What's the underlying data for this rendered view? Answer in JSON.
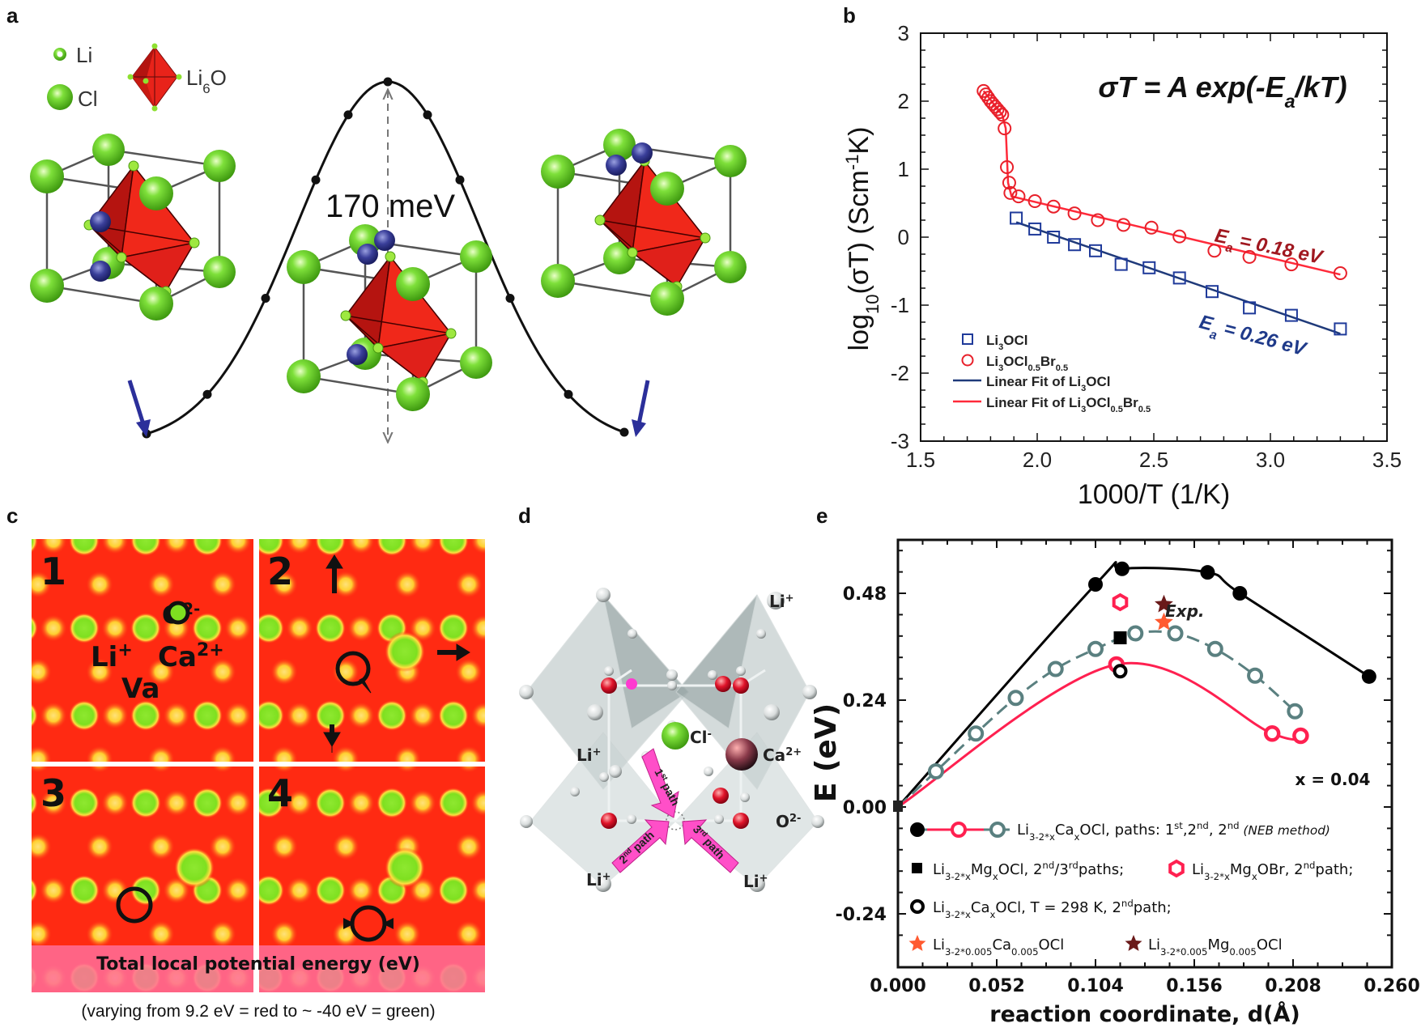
{
  "panels": {
    "a": {
      "label": "a",
      "legend": {
        "li": "Li",
        "cl": "Cl",
        "octahedron": [
          [
            "Li",
            ""
          ],
          [
            "6",
            "sub"
          ],
          [
            "O",
            ""
          ]
        ]
      },
      "barrier_label": "170 meV",
      "colors": {
        "cl": "#6fd92a",
        "octahedron": "#e8231a",
        "migrating_li": "#3a3f9a",
        "arrow": "#2b2f9a"
      }
    },
    "b": {
      "label": "b"
    },
    "c": {
      "label": "c",
      "quadrant_labels": [
        "1",
        "2",
        "3",
        "4"
      ],
      "ion_labels": {
        "o": [
          [
            "O",
            ""
          ],
          [
            "2-",
            "sup"
          ]
        ],
        "li": [
          [
            "Li",
            ""
          ],
          [
            "+",
            "sup"
          ]
        ],
        "ca": [
          [
            "Ca",
            ""
          ],
          [
            "2+",
            "sup"
          ]
        ],
        "va": [
          [
            "Va",
            ""
          ]
        ]
      },
      "band_label": "Total local potential energy (eV)",
      "caption": "(varying from 9.2 eV = red to ~ -40 eV = green)",
      "colors": {
        "high": "#ff2a12",
        "low": "#7ee020",
        "mid": "#ffe040",
        "band": "#ff6f9a"
      }
    },
    "d": {
      "label": "d",
      "labels": {
        "li_top": [
          [
            "Li",
            ""
          ],
          [
            "+",
            "sup"
          ]
        ],
        "li_left": [
          [
            "Li",
            ""
          ],
          [
            "+",
            "sup"
          ]
        ],
        "cl": [
          [
            "Cl",
            ""
          ],
          [
            "-",
            "sup"
          ]
        ],
        "ca": [
          [
            "Ca",
            ""
          ],
          [
            "2+",
            "sup"
          ]
        ],
        "o": [
          [
            "O",
            ""
          ],
          [
            "2-",
            "sup"
          ]
        ],
        "li_bottom_left": [
          [
            "Li",
            ""
          ],
          [
            "+",
            "sup"
          ]
        ],
        "li_bottom_right": [
          [
            "Li",
            ""
          ],
          [
            "+",
            "sup"
          ]
        ]
      },
      "paths": [
        [
          [
            "1",
            ""
          ],
          [
            "st",
            "sup"
          ],
          [
            " path",
            ""
          ]
        ],
        [
          [
            "2",
            ""
          ],
          [
            "nd",
            "sup"
          ],
          [
            " path",
            ""
          ]
        ],
        [
          [
            "3",
            ""
          ],
          [
            "rd",
            "sup"
          ],
          [
            " path",
            ""
          ]
        ]
      ],
      "colors": {
        "path_arrow": "#ff4fc8",
        "o": "#e0142a",
        "cl": "#8ee030",
        "ca": "#7a2b3a"
      }
    },
    "e": {
      "label": "e"
    }
  },
  "chart_data": [
    {
      "id": "b",
      "type": "scatter",
      "equation": [
        [
          "σT = A exp(-E",
          ""
        ],
        [
          "a",
          "sub"
        ],
        [
          "/kT)",
          ""
        ]
      ],
      "xlabel": "1000/T (1/K)",
      "ylabel": [
        [
          "log",
          ""
        ],
        [
          "10",
          "sub"
        ],
        [
          "(σT) (Scm",
          ""
        ],
        [
          "-1",
          "sup"
        ],
        [
          "K)",
          ""
        ]
      ],
      "xlim": [
        1.5,
        3.5
      ],
      "ylim": [
        -3,
        3
      ],
      "xticks": [
        "1.5",
        "2.0",
        "2.5",
        "3.0",
        "3.5"
      ],
      "yticks": [
        "-3",
        "-2",
        "-1",
        "0",
        "1",
        "2",
        "3"
      ],
      "legend_position": "bottom-left",
      "series": [
        {
          "name": "Li3OCl",
          "name_rich": [
            [
              "Li",
              ""
            ],
            [
              "3",
              "sub"
            ],
            [
              "OCl",
              ""
            ]
          ],
          "marker": "open-square",
          "color": "#1f3a9a",
          "x": [
            1.91,
            1.99,
            2.07,
            2.16,
            2.25,
            2.36,
            2.48,
            2.61,
            2.75,
            2.91,
            3.09,
            3.3
          ],
          "y": [
            0.28,
            0.12,
            0.0,
            -0.11,
            -0.2,
            -0.4,
            -0.45,
            -0.6,
            -0.8,
            -1.04,
            -1.15,
            -1.35
          ]
        },
        {
          "name": "Li3OCl0.5Br0.5",
          "name_rich": [
            [
              "Li",
              ""
            ],
            [
              "3",
              "sub"
            ],
            [
              "OCl",
              ""
            ],
            [
              "0.5",
              "sub"
            ],
            [
              "Br",
              ""
            ],
            [
              "0.5",
              "sub"
            ]
          ],
          "marker": "open-circle",
          "color": "#e8202a",
          "x": [
            1.77,
            1.78,
            1.79,
            1.8,
            1.81,
            1.82,
            1.83,
            1.84,
            1.85,
            1.86,
            1.87,
            1.88,
            1.885,
            1.92,
            1.99,
            2.07,
            2.16,
            2.26,
            2.37,
            2.49,
            2.61,
            2.76,
            2.91,
            3.09,
            3.3
          ],
          "y": [
            2.15,
            2.1,
            2.05,
            2.0,
            1.96,
            1.92,
            1.88,
            1.84,
            1.8,
            1.6,
            1.03,
            0.8,
            0.65,
            0.6,
            0.53,
            0.45,
            0.35,
            0.25,
            0.18,
            0.14,
            0.01,
            -0.2,
            -0.29,
            -0.4,
            -0.53
          ]
        },
        {
          "name": "Linear Fit of Li3OCl",
          "name_rich": [
            [
              "Linear Fit of Li",
              ""
            ],
            [
              "3",
              "sub"
            ],
            [
              "OCl",
              ""
            ]
          ],
          "marker": "line",
          "color": "#1f3a7a",
          "x": [
            1.91,
            3.3
          ],
          "y": [
            0.22,
            -1.42
          ]
        },
        {
          "name": "Linear Fit of Li3OCl0.5Br0.5",
          "name_rich": [
            [
              "Linear Fit of Li",
              ""
            ],
            [
              "3",
              "sub"
            ],
            [
              "OCl",
              ""
            ],
            [
              "0.5",
              "sub"
            ],
            [
              "Br",
              ""
            ],
            [
              "0.5",
              "sub"
            ]
          ],
          "marker": "line",
          "color": "#ff2a3a",
          "x": [
            1.77,
            1.85,
            1.865,
            1.875,
            1.89,
            3.3
          ],
          "y": [
            2.15,
            1.8,
            1.6,
            0.8,
            0.6,
            -0.55
          ]
        }
      ],
      "annotations": [
        {
          "text": [
            [
              "E",
              ""
            ],
            [
              "a",
              "sub"
            ],
            [
              " = 0.18 eV",
              ""
            ]
          ],
          "color": "#a01820"
        },
        {
          "text": [
            [
              "E",
              ""
            ],
            [
              "a",
              "sub"
            ],
            [
              " = 0.26 eV",
              ""
            ]
          ],
          "color": "#1f3a8a"
        }
      ]
    },
    {
      "id": "e",
      "type": "line",
      "xlabel": "reaction coordinate, d(Å)",
      "ylabel": "E (eV)",
      "xlim": [
        0,
        0.26
      ],
      "ylim": [
        -0.36,
        0.6
      ],
      "xticks": [
        "0.000",
        "0.052",
        "0.104",
        "0.156",
        "0.208",
        "0.260"
      ],
      "yticks": [
        "-0.24",
        "0.00",
        "0.24",
        "0.48"
      ],
      "annotation": "x = 0.04",
      "exp_label": "Exp.",
      "series": [
        {
          "id": "ca-1st",
          "marker": "filled-circle",
          "color": "#000000",
          "line": "solid",
          "x": [
            0,
            0.104,
            0.118,
            0.163,
            0.18,
            0.248
          ],
          "y": [
            0,
            0.5,
            0.535,
            0.527,
            0.48,
            0.293
          ]
        },
        {
          "id": "ca-2nd",
          "marker": "open-circle",
          "color": "#ff2050",
          "line": "solid",
          "x": [
            0,
            0.115,
            0.197,
            0.212
          ],
          "y": [
            0,
            0.32,
            0.165,
            0.16
          ]
        },
        {
          "id": "ca-2nd-neb",
          "marker": "open-circle",
          "color": "#5a8080",
          "line": "dashed",
          "x": [
            0,
            0.02,
            0.041,
            0.062,
            0.083,
            0.104,
            0.125,
            0.146,
            0.167,
            0.188,
            0.209
          ],
          "y": [
            0,
            0.08,
            0.165,
            0.245,
            0.31,
            0.355,
            0.39,
            0.39,
            0.355,
            0.295,
            0.215
          ]
        },
        {
          "id": "mg-ocl",
          "marker": "filled-square",
          "color": "#000000",
          "x": [
            0.117
          ],
          "y": [
            0.38
          ]
        },
        {
          "id": "mg-obr",
          "marker": "open-hexagon",
          "color": "#ff2050",
          "x": [
            0.117
          ],
          "y": [
            0.46
          ]
        },
        {
          "id": "ca-298k",
          "marker": "open-circle-black",
          "color": "#000000",
          "x": [
            0.117
          ],
          "y": [
            0.305
          ]
        },
        {
          "id": "ca-0.005",
          "marker": "star",
          "color": "#ff5a30",
          "x": [
            0.14
          ],
          "y": [
            0.415
          ]
        },
        {
          "id": "mg-0.005",
          "marker": "star",
          "color": "#6a1a1a",
          "x": [
            0.14
          ],
          "y": [
            0.455
          ]
        }
      ],
      "legend": [
        [
          [
            "Li",
            ""
          ],
          [
            "3-2*x",
            "sub"
          ],
          [
            "Ca",
            ""
          ],
          [
            "x",
            "sub"
          ],
          [
            "OCl, paths: 1",
            ""
          ],
          [
            "st",
            "sup"
          ],
          [
            ",2",
            ""
          ],
          [
            "nd",
            "sup"
          ],
          [
            ", 2",
            ""
          ],
          [
            "nd",
            "sup"
          ],
          [
            " (NEB method)",
            "it"
          ]
        ],
        [
          [
            "Li",
            ""
          ],
          [
            "3-2*x",
            "sub"
          ],
          [
            "Mg",
            ""
          ],
          [
            "x",
            "sub"
          ],
          [
            "OCl, 2",
            ""
          ],
          [
            "nd",
            "sup"
          ],
          [
            "/3",
            ""
          ],
          [
            "rd",
            "sup"
          ],
          [
            "paths;",
            ""
          ]
        ],
        [
          [
            "Li",
            ""
          ],
          [
            "3-2*x",
            "sub"
          ],
          [
            "Mg",
            ""
          ],
          [
            "x",
            "sub"
          ],
          [
            "OBr, 2",
            ""
          ],
          [
            "nd",
            "sup"
          ],
          [
            "path;",
            ""
          ]
        ],
        [
          [
            "Li",
            ""
          ],
          [
            "3-2*x",
            "sub"
          ],
          [
            "Ca",
            ""
          ],
          [
            "x",
            "sub"
          ],
          [
            "OCl, T = 298 K, 2",
            ""
          ],
          [
            "nd",
            "sup"
          ],
          [
            "path;",
            ""
          ]
        ],
        [
          [
            "Li",
            ""
          ],
          [
            "3-2*0.005",
            "sub"
          ],
          [
            "Ca",
            ""
          ],
          [
            "0.005",
            "sub"
          ],
          [
            "OCl",
            ""
          ]
        ],
        [
          [
            "Li",
            ""
          ],
          [
            "3-2*0.005",
            "sub"
          ],
          [
            "Mg",
            ""
          ],
          [
            "0.005",
            "sub"
          ],
          [
            "OCl",
            ""
          ]
        ]
      ]
    }
  ]
}
